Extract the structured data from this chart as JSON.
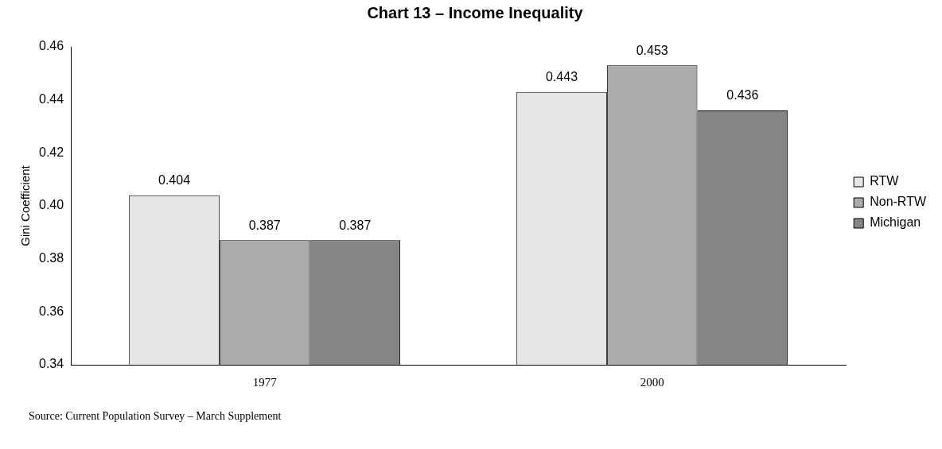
{
  "chart_data": {
    "type": "bar",
    "title": "Chart 13 – Income Inequality",
    "ylabel": "Gini Coefficient",
    "categories": [
      "1977",
      "2000"
    ],
    "series": [
      {
        "name": "RTW",
        "color": "#e6e6e6",
        "values": [
          0.404,
          0.443
        ]
      },
      {
        "name": "Non-RTW",
        "color": "#ababab",
        "values": [
          0.387,
          0.453
        ]
      },
      {
        "name": "Michigan",
        "color": "#858585",
        "values": [
          0.387,
          0.436
        ]
      }
    ],
    "ylim": [
      0.34,
      0.46
    ],
    "yticks": [
      0.34,
      0.36,
      0.38,
      {
        "value": 0.4,
        "label": "0.40"
      },
      0.42,
      0.44,
      0.46
    ],
    "grid": false,
    "legend": "right",
    "data_labels": true,
    "annotations": [
      "Source: Current Population Survey – March Supplement"
    ]
  }
}
